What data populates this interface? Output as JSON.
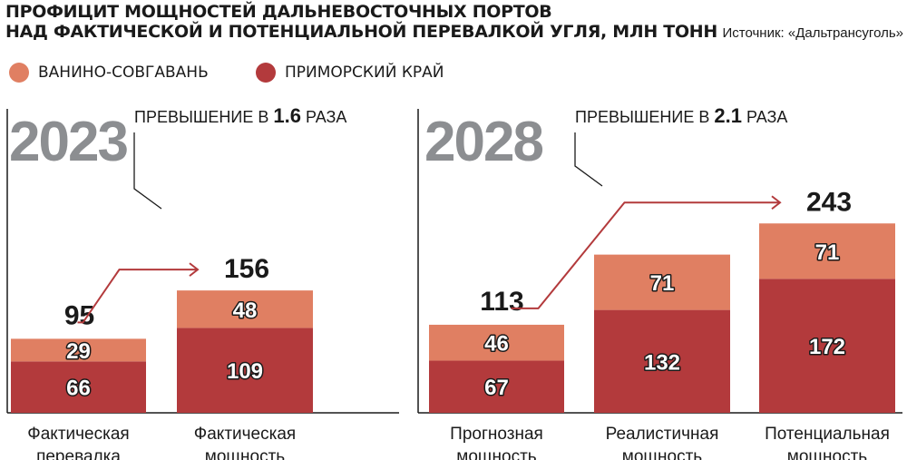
{
  "title_lines": [
    "ПРОФИЦИТ МОЩНОСТЕЙ ДАЛЬНЕВОСТОЧНЫХ ПОРТОВ",
    "НАД ФАКТИЧЕСКОЙ И ПОТЕНЦИАЛЬНОЙ ПЕРЕВАЛКОЙ УГЛЯ, МЛН ТОНН"
  ],
  "source": "Источник: «Дальтрансуголь»",
  "colors": {
    "vanino": "#E07F62",
    "primorsky": "#B33A3C",
    "year": "#8C8E91",
    "arrow": "#B33A3C"
  },
  "chart_data": [
    {
      "type": "bar",
      "stacked": true,
      "year": "2023",
      "annotation": {
        "prefix": "ПРЕВЫШЕНИЕ В ",
        "value": "1.6",
        "suffix": " РАЗА"
      },
      "categories": [
        "Фактическая\nперевалка",
        "Фактическая\nмощность"
      ],
      "series": [
        {
          "name": "ПРИМОРСКИЙ КРАЙ",
          "values": [
            66,
            109
          ]
        },
        {
          "name": "ВАНИНО-СОВГАВАНЬ",
          "values": [
            29,
            48
          ]
        }
      ],
      "totals": [
        95,
        156
      ],
      "ylim": [
        0,
        250
      ]
    },
    {
      "type": "bar",
      "stacked": true,
      "year": "2028",
      "annotation": {
        "prefix": "ПРЕВЫШЕНИЕ В ",
        "value": "2.1",
        "suffix": " РАЗА"
      },
      "categories": [
        "Прогнозная\nмощность",
        "Реалистичная\nмощность",
        "Потенциальная\nмощность"
      ],
      "series": [
        {
          "name": "ПРИМОРСКИЙ КРАЙ",
          "values": [
            67,
            132,
            172
          ]
        },
        {
          "name": "ВАНИНО-СОВГАВАНЬ",
          "values": [
            46,
            71,
            71
          ]
        }
      ],
      "totals": [
        113,
        null,
        243
      ],
      "ylim": [
        0,
        250
      ]
    }
  ]
}
